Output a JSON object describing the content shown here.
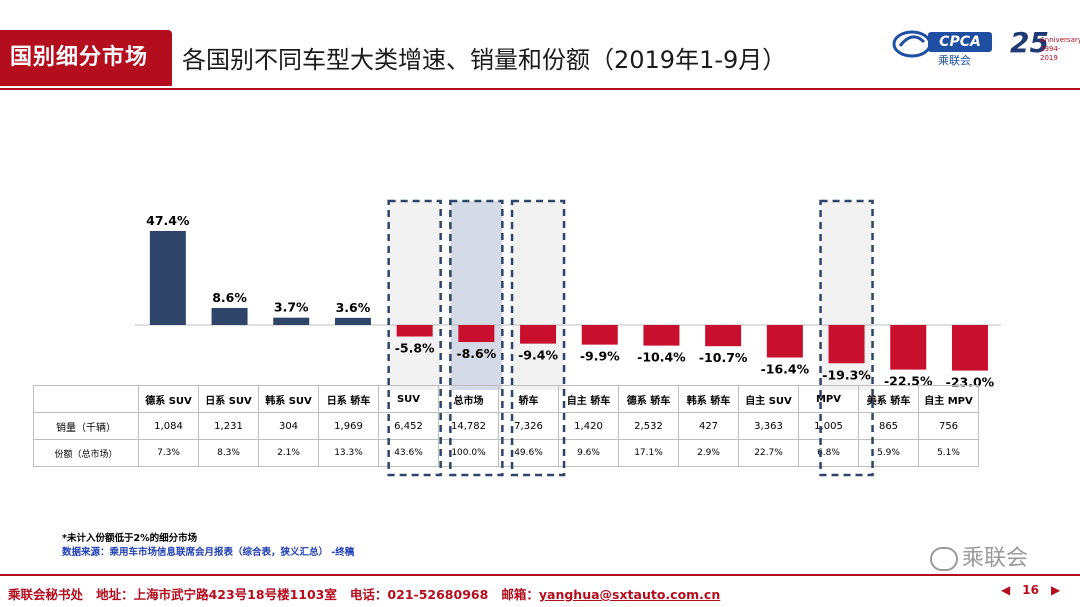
{
  "header": {
    "section_tag": "国别细分市场",
    "title": "各国别不同车型大类增速、销量和份额（2019年1-9月）",
    "logo_text": "CPCA",
    "logo_sub": "乘联会",
    "anniversary_number": "25",
    "anniversary_text": "Anniversary 1994-2019"
  },
  "colors": {
    "brand_red": "#b30d1e",
    "positive_bar": "#2e4468",
    "negative_bar": "#c8102e",
    "highlight_fill": "#f2f2f2",
    "highlight_fill_total": "#d4dbe6",
    "dashed_border": "#2e4468"
  },
  "chart_data": {
    "type": "bar",
    "categories": [
      "德系 SUV",
      "日系 SUV",
      "韩系 SUV",
      "日系 轿车",
      "SUV",
      "总市场",
      "轿车",
      "自主 轿车",
      "德系 轿车",
      "韩系 轿车",
      "自主 SUV",
      "MPV",
      "美系 轿车",
      "自主 MPV"
    ],
    "values": [
      47.4,
      8.6,
      3.7,
      3.6,
      -5.8,
      -8.6,
      -9.4,
      -9.9,
      -10.4,
      -10.7,
      -16.4,
      -19.3,
      -22.5,
      -23.0
    ],
    "value_labels": [
      "47.4%",
      "8.6%",
      "3.7%",
      "3.6%",
      "-5.8%",
      "-8.6%",
      "-9.4%",
      "-9.9%",
      "-10.4%",
      "-10.7%",
      "-16.4%",
      "-19.3%",
      "-22.5%",
      "-23.0%"
    ],
    "highlighted": [
      "SUV",
      "总市场",
      "轿车",
      "MPV"
    ],
    "ylim": [
      -25,
      50
    ],
    "grid": false,
    "title": "",
    "xlabel": "",
    "ylabel": ""
  },
  "table": {
    "rows": [
      {
        "label": "销量（千辆）",
        "values": [
          "1,084",
          "1,231",
          "304",
          "1,969",
          "6,452",
          "14,782",
          "7,326",
          "1,420",
          "2,532",
          "427",
          "3,363",
          "1,005",
          "865",
          "756"
        ]
      },
      {
        "label": "份额（总市场）",
        "values": [
          "7.3%",
          "8.3%",
          "2.1%",
          "13.3%",
          "43.6%",
          "100.0%",
          "49.6%",
          "9.6%",
          "17.1%",
          "2.9%",
          "22.7%",
          "6.8%",
          "5.9%",
          "5.1%"
        ]
      }
    ]
  },
  "notes": {
    "note": "*未计入份额低于2%的细分市场",
    "source": "数据来源：乘用车市场信息联席会月报表（综合表，狭义汇总）  -终稿"
  },
  "watermark": "乘联会",
  "footer": {
    "org": "乘联会秘书处",
    "address": "地址：上海市武宁路423号18号楼1103室",
    "phone": "电话：021-52680968",
    "email_label": "邮箱：",
    "email": "yanghua@sxtauto.com.cn",
    "prev_icon": "triangle-left",
    "page_number": "16",
    "next_icon": "triangle-right"
  }
}
